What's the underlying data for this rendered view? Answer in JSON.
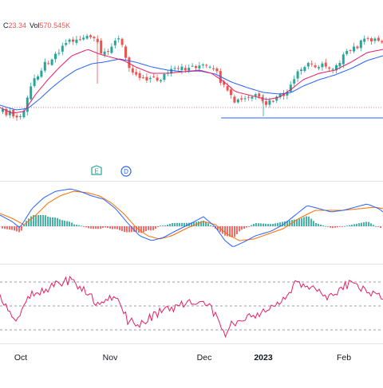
{
  "header": {
    "close_label": "C",
    "close_value": "23.34",
    "volume_label": "Vol",
    "volume_value": "570.545K"
  },
  "markers": {
    "earnings": "E",
    "dividend": "D"
  },
  "colors": {
    "up": "#26a69a",
    "down": "#ef5350",
    "ma_fast": "#e91e63",
    "ma_slow": "#2962ff",
    "macd": "#2962ff",
    "signal": "#ff6d00",
    "rsi": "#e91e63",
    "support": "#2962ff",
    "grid": "#e0e3eb"
  },
  "chart_data": {
    "type": "line",
    "x_ticks": [
      "Oct",
      "Nov",
      "Dec",
      "2023",
      "Feb"
    ],
    "price": {
      "kind": "candlestick",
      "support_line": true
    },
    "macd": {
      "zero_line": true
    },
    "rsi": {
      "bands": [
        70,
        50,
        30
      ]
    }
  }
}
